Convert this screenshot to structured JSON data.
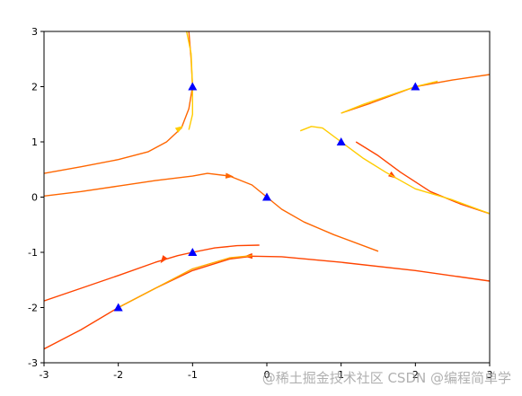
{
  "chart_data": {
    "type": "line",
    "xlim": [
      -3,
      3
    ],
    "ylim": [
      -3,
      3
    ],
    "xticks": [
      "-3",
      "-2",
      "-1",
      "0",
      "1",
      "2",
      "3"
    ],
    "yticks": [
      "-3",
      "-2",
      "-1",
      "0",
      "1",
      "2",
      "3"
    ],
    "grid": false,
    "colors": {
      "triangle": "#0000ff",
      "axis": "#000000"
    },
    "triangles": [
      {
        "x": -1,
        "y": 2
      },
      {
        "x": 1,
        "y": 1
      },
      {
        "x": 2,
        "y": 2
      },
      {
        "x": 0,
        "y": 0
      },
      {
        "x": -1,
        "y": -1
      },
      {
        "x": -2,
        "y": -2
      }
    ],
    "series": [
      {
        "color": "#ff6600",
        "points": [
          [
            -3,
            0.43
          ],
          [
            -2.5,
            0.55
          ],
          [
            -2,
            0.68
          ],
          [
            -1.6,
            0.82
          ],
          [
            -1.35,
            1.0
          ],
          [
            -1.15,
            1.25
          ],
          [
            -1.05,
            1.6
          ],
          [
            -1.0,
            2.0
          ],
          [
            -1.02,
            2.5
          ],
          [
            -1.05,
            3.0
          ]
        ],
        "arrows": []
      },
      {
        "color": "#ffcc00",
        "points": [
          [
            -1.05,
            1.22
          ],
          [
            -1.0,
            1.5
          ],
          [
            -1.0,
            2.0
          ],
          [
            -1.02,
            2.6
          ],
          [
            -1.08,
            3.0
          ]
        ],
        "arrows": [
          [
            -1.17,
            1.25,
            -0.6
          ]
        ]
      },
      {
        "color": "#ff6600",
        "points": [
          [
            -3,
            0.02
          ],
          [
            -2.5,
            0.1
          ],
          [
            -2,
            0.2
          ],
          [
            -1.5,
            0.3
          ],
          [
            -1,
            0.38
          ],
          [
            -0.8,
            0.43
          ],
          [
            -0.5,
            0.38
          ],
          [
            -0.2,
            0.22
          ],
          [
            0,
            0
          ],
          [
            0.2,
            -0.22
          ],
          [
            0.5,
            -0.45
          ],
          [
            0.9,
            -0.68
          ],
          [
            1.5,
            -0.98
          ]
        ],
        "arrows": [
          [
            -0.5,
            0.38,
            0.1
          ]
        ]
      },
      {
        "color": "#ff4400",
        "points": [
          [
            1.2,
            1.0
          ],
          [
            1.5,
            0.75
          ],
          [
            1.8,
            0.45
          ],
          [
            2.2,
            0.1
          ],
          [
            2.6,
            -0.12
          ],
          [
            3,
            -0.3
          ]
        ],
        "arrows": [
          [
            1.7,
            0.38,
            0.6
          ]
        ]
      },
      {
        "color": "#ffcc00",
        "points": [
          [
            0.45,
            1.2
          ],
          [
            0.6,
            1.28
          ],
          [
            0.75,
            1.25
          ],
          [
            1.0,
            1.0
          ],
          [
            1.3,
            0.7
          ],
          [
            1.6,
            0.45
          ],
          [
            2.0,
            0.15
          ],
          [
            2.5,
            -0.05
          ],
          [
            3,
            -0.3
          ]
        ],
        "arrows": []
      },
      {
        "color": "#ff6600",
        "points": [
          [
            1.0,
            1.52
          ],
          [
            1.4,
            1.7
          ],
          [
            1.7,
            1.85
          ],
          [
            2.0,
            2.0
          ],
          [
            2.5,
            2.12
          ],
          [
            3,
            2.22
          ]
        ],
        "arrows": []
      },
      {
        "color": "#ffcc00",
        "points": [
          [
            1.0,
            1.52
          ],
          [
            1.3,
            1.68
          ],
          [
            1.6,
            1.82
          ],
          [
            2.0,
            2.0
          ],
          [
            2.3,
            2.1
          ]
        ],
        "arrows": []
      },
      {
        "color": "#ff4400",
        "points": [
          [
            -3,
            -1.88
          ],
          [
            -2.5,
            -1.65
          ],
          [
            -2,
            -1.42
          ],
          [
            -1.5,
            -1.18
          ],
          [
            -1.2,
            -1.06
          ],
          [
            -1,
            -1.0
          ],
          [
            -0.7,
            -0.92
          ],
          [
            -0.4,
            -0.88
          ],
          [
            -0.1,
            -0.87
          ]
        ],
        "arrows": [
          [
            -1.4,
            -1.14,
            2.2
          ]
        ]
      },
      {
        "color": "#ff4400",
        "points": [
          [
            -3,
            -2.75
          ],
          [
            -2.5,
            -2.4
          ],
          [
            -2,
            -2.0
          ],
          [
            -1.5,
            -1.65
          ],
          [
            -1,
            -1.33
          ],
          [
            -0.5,
            -1.12
          ],
          [
            -0.2,
            -1.07
          ],
          [
            0.2,
            -1.08
          ],
          [
            1,
            -1.18
          ],
          [
            2,
            -1.33
          ],
          [
            3,
            -1.52
          ]
        ],
        "arrows": [
          [
            -0.25,
            -1.07,
            3.1
          ]
        ]
      },
      {
        "color": "#ffaa00",
        "points": [
          [
            -2,
            -2.0
          ],
          [
            -1.5,
            -1.65
          ],
          [
            -1,
            -1.3
          ],
          [
            -0.5,
            -1.1
          ],
          [
            -0.2,
            -1.06
          ]
        ],
        "arrows": []
      }
    ]
  },
  "watermark": "@稀土掘金技术社区 CSDN @编程简单学"
}
